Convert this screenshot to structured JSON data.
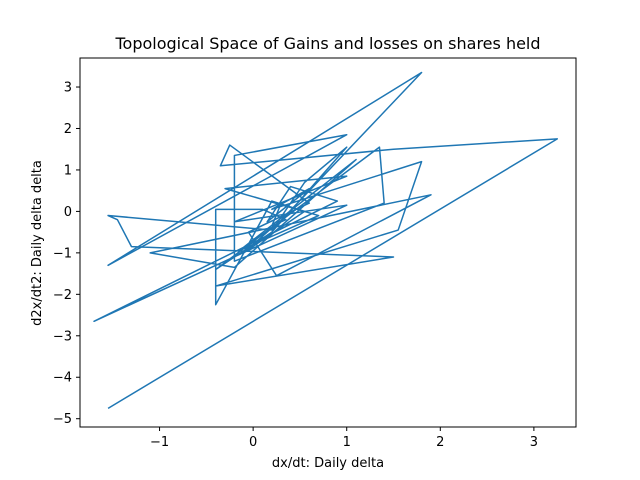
{
  "chart_data": {
    "type": "line",
    "title": "Topological Space of Gains and losses on shares held",
    "xlabel": "dx/dt: Daily delta",
    "ylabel": "d2x/dt2: Daily delta delta",
    "xlim": [
      -1.85,
      3.45
    ],
    "ylim": [
      -5.2,
      3.7
    ],
    "xticks": [
      -1,
      0,
      1,
      2,
      3
    ],
    "yticks": [
      -5,
      -4,
      -3,
      -2,
      -1,
      0,
      1,
      2,
      3
    ],
    "xtick_labels": [
      "−1",
      "0",
      "1",
      "2",
      "3"
    ],
    "ytick_labels": [
      "−5",
      "−4",
      "−3",
      "−2",
      "−1",
      "0",
      "1",
      "2",
      "3"
    ],
    "grid": false,
    "legend": "none",
    "color": "#1f77b4",
    "series": [
      {
        "x": [
          0.3,
          0.2,
          0.35,
          0.1,
          -0.4,
          -0.4,
          0.2,
          0.55,
          -0.1,
          0.25,
          0.55,
          1.0,
          0.2,
          -0.4,
          1.35,
          1.4,
          -0.2,
          -0.2,
          1.0,
          -1.55,
          1.8,
          0.2,
          -1.55,
          -1.45,
          -1.3,
          1.5,
          -0.4,
          1.55,
          1.8,
          0.2,
          0.6,
          0.15,
          0.4,
          0.9,
          -1.7,
          1.0,
          -0.2,
          1.0,
          -0.3,
          0.7,
          -0.15,
          1.1,
          -0.2,
          -1.1,
          1.9,
          0.25,
          -0.05,
          0.6,
          -0.25,
          -0.35,
          1.5,
          3.25,
          -1.55
        ],
        "y": [
          0.2,
          -0.35,
          -0.2,
          0.05,
          0.05,
          -2.25,
          0.25,
          0.0,
          -1.0,
          -0.3,
          0.7,
          1.55,
          -0.5,
          -1.4,
          1.55,
          0.2,
          -1.2,
          1.35,
          1.85,
          -1.3,
          3.35,
          -0.45,
          -0.1,
          -0.2,
          -0.85,
          -1.1,
          -1.8,
          -0.45,
          1.2,
          0.05,
          0.55,
          -0.25,
          0.6,
          0.25,
          -2.65,
          0.15,
          -0.25,
          0.85,
          0.55,
          -0.1,
          -0.95,
          1.25,
          -1.35,
          -1.0,
          0.4,
          -1.55,
          -0.5,
          0.2,
          1.6,
          1.1,
          1.5,
          1.75,
          -4.75
        ]
      }
    ]
  }
}
